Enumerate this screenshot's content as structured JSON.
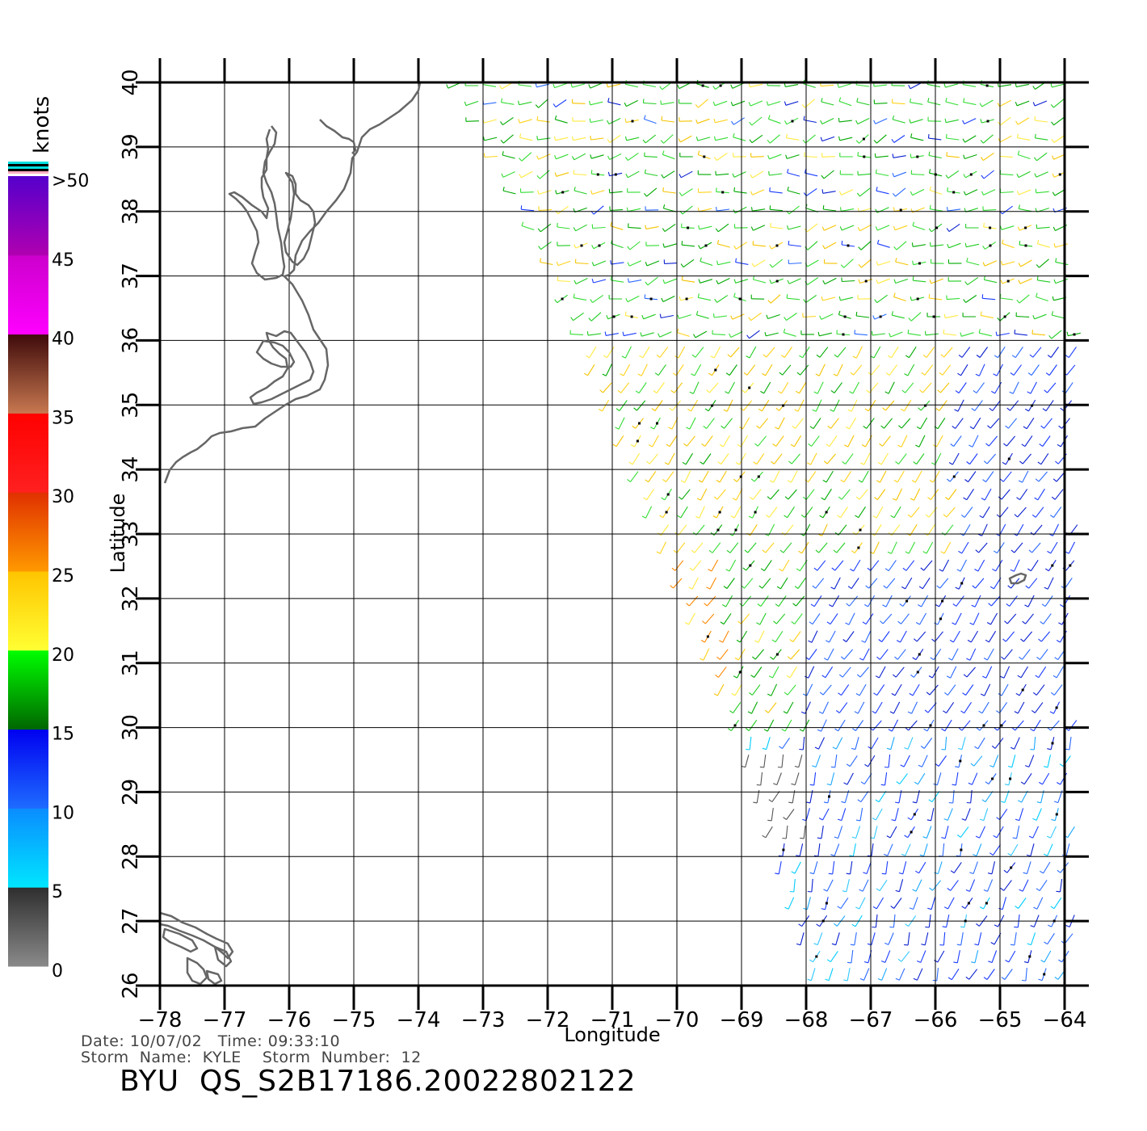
{
  "legend": {
    "unit": "knots",
    "labels": [
      ">50",
      "45",
      "40",
      "35",
      "30",
      "25",
      "20",
      "15",
      "10",
      "5",
      "0"
    ],
    "bands": [
      {
        "from": 0,
        "to": 5,
        "colors": [
          "#8a8a8a",
          "#2e2e2e"
        ]
      },
      {
        "from": 5,
        "to": 10,
        "colors": [
          "#00e6ff",
          "#0a8cff"
        ]
      },
      {
        "from": 10,
        "to": 15,
        "colors": [
          "#1e6cff",
          "#0000f0"
        ]
      },
      {
        "from": 15,
        "to": 20,
        "colors": [
          "#006600",
          "#00ff00"
        ]
      },
      {
        "from": 20,
        "to": 25,
        "colors": [
          "#ffff33",
          "#ffc400"
        ]
      },
      {
        "from": 25,
        "to": 30,
        "colors": [
          "#ff9900",
          "#e03000"
        ]
      },
      {
        "from": 30,
        "to": 35,
        "colors": [
          "#ff2020",
          "#ff0000"
        ]
      },
      {
        "from": 35,
        "to": 40,
        "colors": [
          "#c87850",
          "#3e0a0a"
        ]
      },
      {
        "from": 40,
        "to": 45,
        "colors": [
          "#ff00ff",
          "#cc00cc"
        ]
      },
      {
        "from": 45,
        "to": 50,
        "colors": [
          "#b000b0",
          "#5500cc"
        ]
      }
    ]
  },
  "axes": {
    "xlabel": "Longitude",
    "ylabel": "Latitude",
    "xlim": [
      -78,
      -64
    ],
    "ylim": [
      26,
      40
    ],
    "xticks": [
      "−78",
      "−77",
      "−76",
      "−75",
      "−74",
      "−73",
      "−72",
      "−71",
      "−70",
      "−69",
      "−68",
      "−67",
      "−66",
      "−65",
      "−64"
    ],
    "yticks": [
      "26",
      "27",
      "28",
      "29",
      "30",
      "31",
      "32",
      "33",
      "34",
      "35",
      "36",
      "37",
      "38",
      "39",
      "40"
    ]
  },
  "footer": {
    "line1": "Date: 10/07/02   Time: 09:33:10",
    "line2": "Storm  Name:  KYLE    Storm  Number:  12",
    "title": "BYU  QS_S2B17186.20022802122"
  },
  "coastline_color": "#666666"
}
